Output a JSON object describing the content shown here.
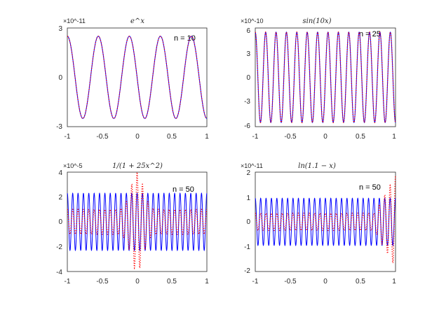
{
  "chart_data": [
    {
      "type": "line",
      "title": "e^x",
      "exponent_label": "×10^-11",
      "annotation": "n = 10",
      "xlim": [
        -1,
        1
      ],
      "ylim": [
        -3,
        3
      ],
      "xticks": [
        "-1",
        "-0.5",
        "0",
        "0.5",
        "1"
      ],
      "yticks": [
        "3",
        "0",
        "-3"
      ],
      "grid": false,
      "series": [
        {
          "style": "solid-blue",
          "color": "#0000ff",
          "amplitude": 2.5,
          "cycles": 4.5,
          "phase": 0.0
        },
        {
          "style": "dotted-red",
          "color": "#ff0000",
          "amplitude": 2.5,
          "cycles": 4.5,
          "phase": 0.0
        }
      ]
    },
    {
      "type": "line",
      "title": "sin(10x)",
      "exponent_label": "×10^-10",
      "annotation": "n = 25",
      "xlim": [
        -1,
        1
      ],
      "ylim": [
        -6,
        6
      ],
      "xticks": [
        "-1",
        "-0.5",
        "0",
        "0.5",
        "1"
      ],
      "yticks": [
        "6",
        "3",
        "0",
        "-3",
        "-6"
      ],
      "grid": false,
      "series": [
        {
          "style": "solid-blue",
          "color": "#0000ff",
          "amplitude": 5.5,
          "cycles": 13.5,
          "phase": 0.0
        },
        {
          "style": "dotted-red",
          "color": "#ff0000",
          "amplitude": 5.5,
          "cycles": 13.5,
          "phase": 0.0
        }
      ]
    },
    {
      "type": "line",
      "title": "1/(1 + 25x^2)",
      "exponent_label": "×10^-5",
      "annotation": "",
      "xlim": [
        -1,
        1
      ],
      "ylim": [
        -4,
        4
      ],
      "xticks": [
        "-1",
        "-0.5",
        "0",
        "0.5",
        "1"
      ],
      "yticks": [
        "4",
        "2",
        "0",
        "-2",
        "-4"
      ],
      "grid": false,
      "series": [
        {
          "style": "solid-blue",
          "color": "#0000ff",
          "amplitude": 2.3,
          "cycles": 26,
          "phase": 0.0
        },
        {
          "style": "dotted-red",
          "color": "#ff0000",
          "amplitude": 1.0,
          "cycles": 26,
          "phase": 0.0,
          "center_peak": 4.0
        }
      ]
    },
    {
      "type": "line",
      "title": "ln(1.1 − x)",
      "exponent_label": "×10^-11",
      "annotation": "n = 50",
      "xlim": [
        -1,
        1
      ],
      "ylim": [
        -2,
        2
      ],
      "xticks": [
        "-1",
        "-0.5",
        "0",
        "0.5",
        "1"
      ],
      "yticks": [
        "2",
        "1",
        "0",
        "-1",
        "-2"
      ],
      "grid": false,
      "series": [
        {
          "style": "solid-blue",
          "color": "#0000ff",
          "amplitude": 0.95,
          "cycles": 26,
          "phase": 0.0
        },
        {
          "style": "dotted-red",
          "color": "#ff0000",
          "amplitude": 0.35,
          "cycles": 26,
          "phase": 0.0,
          "end_growth": 1.5
        }
      ]
    }
  ],
  "annotations_extra": {
    "panel3_n": "n = 50"
  }
}
